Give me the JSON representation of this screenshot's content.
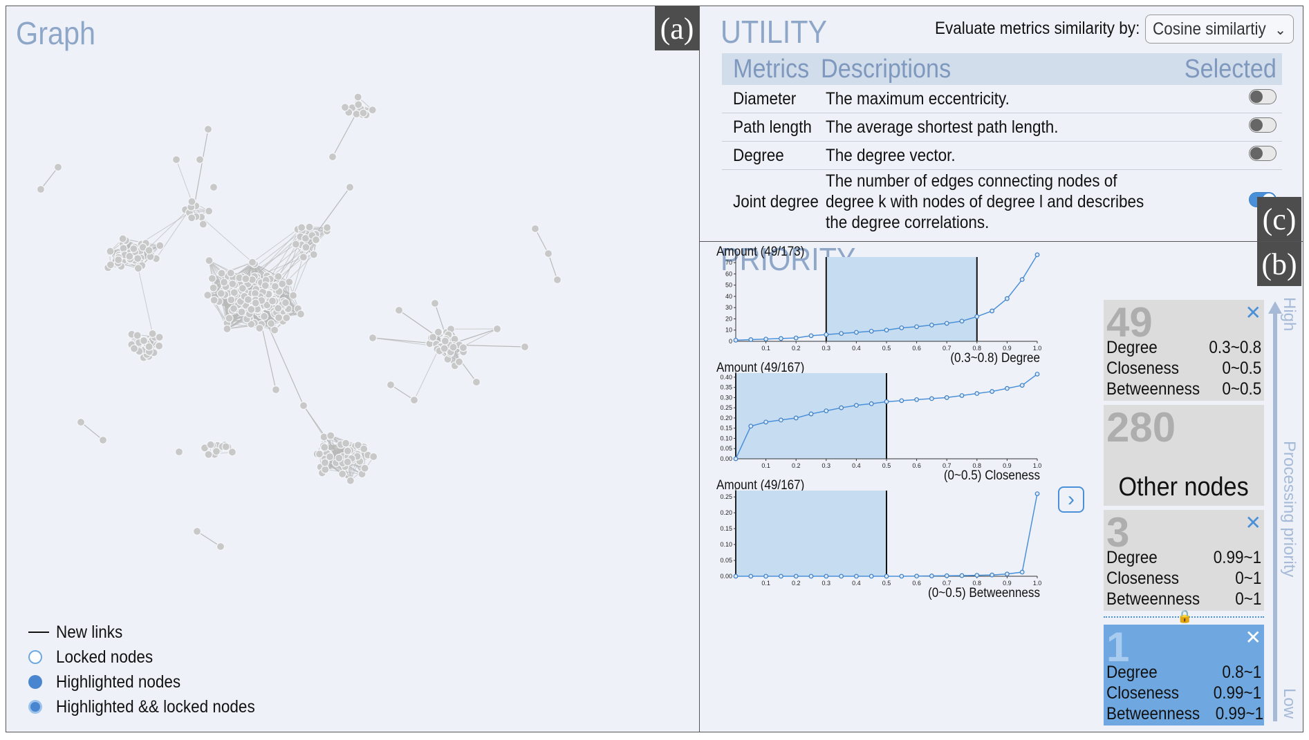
{
  "graph": {
    "title": "Graph",
    "tag": "(a)",
    "legend": [
      {
        "label": "New links",
        "kind": "line"
      },
      {
        "label": "Locked nodes",
        "kind": "locked"
      },
      {
        "label": "Highlighted nodes",
        "kind": "highlighted"
      },
      {
        "label": "Highlighted && locked nodes",
        "kind": "highlighted-locked"
      }
    ],
    "colors": {
      "node": "#c8c8c8",
      "edge": "#b9b9b9",
      "highlight": "#4a86cf"
    }
  },
  "utility": {
    "title": "UTILITY",
    "tag": "(c)",
    "similarity_label": "Evaluate metrics similarity by:",
    "similarity_value": "Cosine similartiy",
    "headers": {
      "metrics": "Metrics",
      "descriptions": "Descriptions",
      "selected": "Selected"
    },
    "rows": [
      {
        "metric": "Diameter",
        "description": "The maximum eccentricity.",
        "selected": false
      },
      {
        "metric": "Path length",
        "description": "The average shortest path length.",
        "selected": false
      },
      {
        "metric": "Degree",
        "description": "The degree vector.",
        "selected": false
      },
      {
        "metric": "Joint degree",
        "description": "The number of edges connecting nodes of degree k with nodes of degree l and describes the degree correlations.",
        "selected": true
      }
    ]
  },
  "priority": {
    "title": "PRIORITY",
    "tag": "(b)",
    "axis": {
      "high": "High",
      "middle": "Processing priority",
      "low": "Low"
    },
    "groups": [
      {
        "count": "49",
        "close": "✕",
        "rows": [
          {
            "metric": "Degree",
            "range": "0.3~0.8"
          },
          {
            "metric": "Closeness",
            "range": "0~0.5"
          },
          {
            "metric": "Betweenness",
            "range": "0~0.5"
          }
        ]
      },
      {
        "count": "280",
        "label": "Other nodes"
      },
      {
        "count": "3",
        "close": "✕",
        "rows": [
          {
            "metric": "Degree",
            "range": "0.99~1"
          },
          {
            "metric": "Closeness",
            "range": "0~1"
          },
          {
            "metric": "Betweenness",
            "range": "0~1"
          }
        ]
      },
      {
        "count": "1",
        "close": "✕",
        "highlighted": true,
        "rows": [
          {
            "metric": "Degree",
            "range": "0.8~1"
          },
          {
            "metric": "Closeness",
            "range": "0.99~1"
          },
          {
            "metric": "Betweenness",
            "range": "0.99~1"
          }
        ]
      }
    ]
  },
  "chart_data": [
    {
      "type": "line",
      "title": "Amount (49/173)",
      "xlabel": "(0.3~0.8) Degree",
      "x": [
        0,
        0.05,
        0.1,
        0.15,
        0.2,
        0.25,
        0.3,
        0.35,
        0.4,
        0.45,
        0.5,
        0.55,
        0.6,
        0.65,
        0.7,
        0.75,
        0.8,
        0.85,
        0.9,
        0.95,
        1.0
      ],
      "values": [
        1,
        1.5,
        2,
        2.5,
        3,
        5,
        6,
        7,
        8,
        9,
        10,
        12,
        13,
        14.5,
        16,
        18,
        22,
        27,
        38,
        55,
        77
      ],
      "xticks": [
        "0.1",
        "0.2",
        "0.3",
        "0.4",
        "0.5",
        "0.6",
        "0.7",
        "0.8",
        "0.9",
        "1.0"
      ],
      "yticks": [
        "0",
        "10",
        "20",
        "30",
        "40",
        "50",
        "60",
        "70"
      ],
      "ylim": [
        0,
        75
      ],
      "selection": [
        0.3,
        0.8
      ]
    },
    {
      "type": "line",
      "title": "Amount (49/167)",
      "xlabel": "(0~0.5) Closeness",
      "x": [
        0,
        0.05,
        0.1,
        0.15,
        0.2,
        0.25,
        0.3,
        0.35,
        0.4,
        0.45,
        0.5,
        0.55,
        0.6,
        0.65,
        0.7,
        0.75,
        0.8,
        0.85,
        0.9,
        0.95,
        1.0
      ],
      "values": [
        0.0,
        0.16,
        0.18,
        0.19,
        0.2,
        0.22,
        0.235,
        0.25,
        0.262,
        0.27,
        0.28,
        0.285,
        0.29,
        0.295,
        0.3,
        0.31,
        0.32,
        0.33,
        0.345,
        0.36,
        0.415
      ],
      "xticks": [
        "0.1",
        "0.2",
        "0.3",
        "0.4",
        "0.5",
        "0.6",
        "0.7",
        "0.8",
        "0.9",
        "1.0"
      ],
      "yticks": [
        "0.00",
        "0.05",
        "0.10",
        "0.15",
        "0.20",
        "0.25",
        "0.30",
        "0.35",
        "0.40"
      ],
      "ylim": [
        0,
        0.42
      ],
      "selection": [
        0,
        0.5
      ]
    },
    {
      "type": "line",
      "title": "Amount (49/167)",
      "xlabel": "(0~0.5) Betweenness",
      "x": [
        0,
        0.05,
        0.1,
        0.15,
        0.2,
        0.25,
        0.3,
        0.35,
        0.4,
        0.45,
        0.5,
        0.55,
        0.6,
        0.65,
        0.7,
        0.75,
        0.8,
        0.85,
        0.9,
        0.95,
        1.0
      ],
      "values": [
        0,
        0,
        0,
        0,
        0,
        0,
        0,
        0,
        0,
        0,
        0,
        0,
        0.0005,
        0.001,
        0.0015,
        0.002,
        0.003,
        0.004,
        0.007,
        0.013,
        0.26
      ],
      "xticks": [
        "0.1",
        "0.2",
        "0.3",
        "0.4",
        "0.5",
        "0.6",
        "0.7",
        "0.8",
        "0.9",
        "1.0"
      ],
      "yticks": [
        "0.00",
        "0.05",
        "0.10",
        "0.15",
        "0.20",
        "0.25"
      ],
      "ylim": [
        0,
        0.27
      ],
      "selection": [
        0,
        0.5
      ]
    }
  ]
}
